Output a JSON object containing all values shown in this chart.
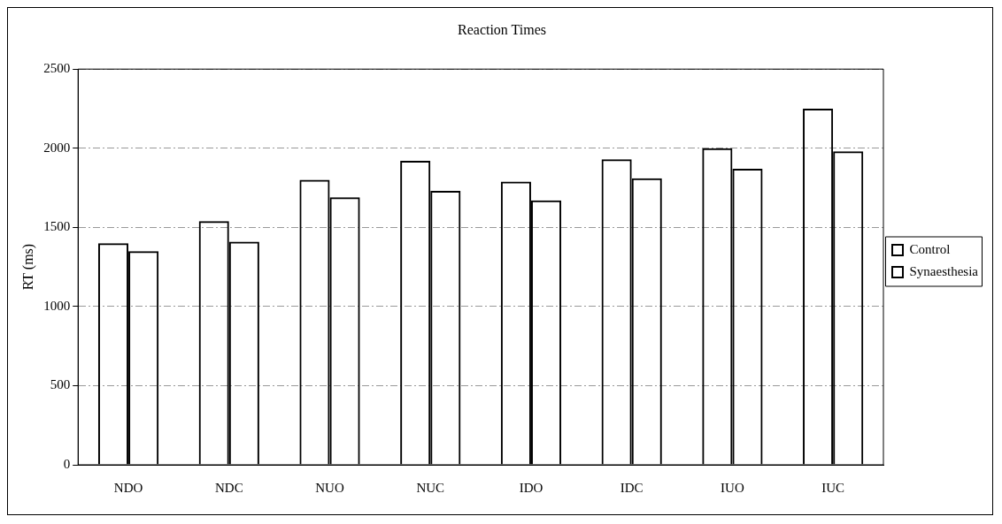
{
  "chart_data": {
    "type": "bar",
    "title": "Reaction Times",
    "ylabel": "RT (ms)",
    "categories": [
      "NDO",
      "NDC",
      "NUO",
      "NUC",
      "IDO",
      "IDC",
      "IUO",
      "IUC"
    ],
    "series": [
      {
        "name": "Control",
        "color": "#000000",
        "values": [
          1400,
          1540,
          1800,
          1920,
          1790,
          1930,
          2000,
          2250
        ]
      },
      {
        "name": "Synaesthesia",
        "color": "#000000",
        "values": [
          1350,
          1410,
          1690,
          1730,
          1670,
          1810,
          1870,
          1980
        ]
      }
    ],
    "ylim": [
      0,
      2500
    ],
    "yticks": [
      0,
      500,
      1000,
      1500,
      2000,
      2500
    ],
    "grid": "y",
    "legend": "right"
  }
}
